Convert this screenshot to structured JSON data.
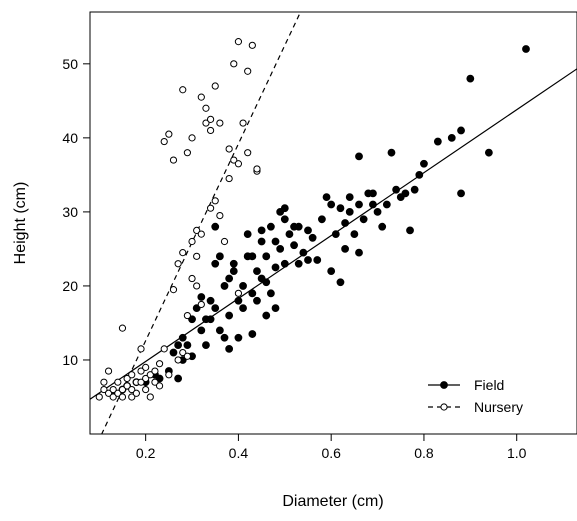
{
  "chart_data": {
    "type": "scatter",
    "title": "",
    "xlabel": "Diameter (cm)",
    "ylabel": "Height (cm)",
    "xlim": [
      0.08,
      1.13
    ],
    "ylim": [
      0,
      57
    ],
    "xticks": [
      0.2,
      0.4,
      0.6,
      0.8,
      1.0
    ],
    "xtick_labels": [
      "0.2",
      "0.4",
      "0.6",
      "0.8",
      "1.0"
    ],
    "yticks": [
      10,
      20,
      30,
      40,
      50
    ],
    "ytick_labels": [
      "10",
      "20",
      "30",
      "40",
      "50"
    ],
    "grid": false,
    "legend_position": "bottom-right",
    "series": [
      {
        "name": "Field",
        "marker": "filled-circle",
        "line": "solid",
        "color": "#000000",
        "fit": {
          "slope": 42.5,
          "intercept": 1.3
        },
        "points": [
          [
            0.13,
            5.5
          ],
          [
            0.15,
            6
          ],
          [
            0.16,
            6.5
          ],
          [
            0.18,
            7
          ],
          [
            0.2,
            7
          ],
          [
            0.22,
            8
          ],
          [
            0.23,
            7.5
          ],
          [
            0.25,
            8.5
          ],
          [
            0.26,
            11
          ],
          [
            0.27,
            12
          ],
          [
            0.27,
            7.5
          ],
          [
            0.28,
            13
          ],
          [
            0.28,
            10
          ],
          [
            0.29,
            12
          ],
          [
            0.3,
            15.5
          ],
          [
            0.3,
            10.5
          ],
          [
            0.31,
            17
          ],
          [
            0.32,
            18.5
          ],
          [
            0.32,
            14
          ],
          [
            0.33,
            15.5
          ],
          [
            0.33,
            12
          ],
          [
            0.34,
            18
          ],
          [
            0.34,
            15.5
          ],
          [
            0.35,
            17
          ],
          [
            0.35,
            23
          ],
          [
            0.35,
            28
          ],
          [
            0.36,
            24
          ],
          [
            0.36,
            14
          ],
          [
            0.37,
            20
          ],
          [
            0.37,
            13
          ],
          [
            0.38,
            16
          ],
          [
            0.38,
            21
          ],
          [
            0.38,
            11.5
          ],
          [
            0.39,
            22
          ],
          [
            0.39,
            23
          ],
          [
            0.4,
            18
          ],
          [
            0.4,
            13
          ],
          [
            0.41,
            17
          ],
          [
            0.41,
            20
          ],
          [
            0.42,
            24
          ],
          [
            0.42,
            27
          ],
          [
            0.43,
            19
          ],
          [
            0.43,
            24
          ],
          [
            0.43,
            13.5
          ],
          [
            0.44,
            22
          ],
          [
            0.44,
            18
          ],
          [
            0.45,
            26
          ],
          [
            0.45,
            21
          ],
          [
            0.45,
            27.5
          ],
          [
            0.46,
            16
          ],
          [
            0.46,
            20.5
          ],
          [
            0.46,
            24
          ],
          [
            0.47,
            28
          ],
          [
            0.47,
            19
          ],
          [
            0.48,
            26
          ],
          [
            0.48,
            22.5
          ],
          [
            0.48,
            17
          ],
          [
            0.49,
            30
          ],
          [
            0.49,
            25
          ],
          [
            0.5,
            29
          ],
          [
            0.5,
            23
          ],
          [
            0.5,
            30.5
          ],
          [
            0.51,
            27
          ],
          [
            0.52,
            25.5
          ],
          [
            0.52,
            28
          ],
          [
            0.53,
            28
          ],
          [
            0.53,
            23
          ],
          [
            0.54,
            24.5
          ],
          [
            0.55,
            23.5
          ],
          [
            0.55,
            27.5
          ],
          [
            0.56,
            26.5
          ],
          [
            0.57,
            23.5
          ],
          [
            0.58,
            29
          ],
          [
            0.59,
            32
          ],
          [
            0.6,
            31
          ],
          [
            0.6,
            22
          ],
          [
            0.61,
            27
          ],
          [
            0.62,
            30.5
          ],
          [
            0.62,
            20.5
          ],
          [
            0.63,
            28.5
          ],
          [
            0.63,
            25
          ],
          [
            0.64,
            32
          ],
          [
            0.64,
            30
          ],
          [
            0.65,
            27
          ],
          [
            0.66,
            31
          ],
          [
            0.66,
            24.5
          ],
          [
            0.66,
            37.5
          ],
          [
            0.67,
            29
          ],
          [
            0.68,
            32.5
          ],
          [
            0.69,
            31
          ],
          [
            0.69,
            32.5
          ],
          [
            0.7,
            30
          ],
          [
            0.71,
            28
          ],
          [
            0.72,
            31
          ],
          [
            0.73,
            38
          ],
          [
            0.74,
            33
          ],
          [
            0.75,
            32
          ],
          [
            0.76,
            32.5
          ],
          [
            0.77,
            27.5
          ],
          [
            0.78,
            33
          ],
          [
            0.79,
            35
          ],
          [
            0.8,
            36.5
          ],
          [
            0.83,
            39.5
          ],
          [
            0.86,
            40
          ],
          [
            0.88,
            32.5
          ],
          [
            0.88,
            41
          ],
          [
            0.9,
            48
          ],
          [
            0.94,
            38
          ],
          [
            1.02,
            52
          ]
        ]
      },
      {
        "name": "Nursery",
        "marker": "open-circle",
        "line": "dashed",
        "color": "#000000",
        "fit": {
          "slope": 133.0,
          "intercept": -14.0
        },
        "points": [
          [
            0.1,
            5
          ],
          [
            0.11,
            6
          ],
          [
            0.11,
            7
          ],
          [
            0.12,
            5.5
          ],
          [
            0.12,
            8.5
          ],
          [
            0.13,
            6
          ],
          [
            0.13,
            5
          ],
          [
            0.14,
            7
          ],
          [
            0.14,
            5.5
          ],
          [
            0.15,
            14.3
          ],
          [
            0.15,
            6
          ],
          [
            0.15,
            5
          ],
          [
            0.16,
            6.5
          ],
          [
            0.16,
            7.5
          ],
          [
            0.17,
            5
          ],
          [
            0.17,
            6
          ],
          [
            0.17,
            8
          ],
          [
            0.18,
            5.5
          ],
          [
            0.18,
            7
          ],
          [
            0.19,
            7
          ],
          [
            0.19,
            8.5
          ],
          [
            0.19,
            11.5
          ],
          [
            0.2,
            6
          ],
          [
            0.2,
            7.5
          ],
          [
            0.2,
            9
          ],
          [
            0.21,
            8
          ],
          [
            0.21,
            5
          ],
          [
            0.22,
            8.5
          ],
          [
            0.22,
            7
          ],
          [
            0.23,
            9.5
          ],
          [
            0.23,
            6.5
          ],
          [
            0.24,
            11.5
          ],
          [
            0.24,
            39.5
          ],
          [
            0.25,
            40.5
          ],
          [
            0.25,
            8
          ],
          [
            0.26,
            37
          ],
          [
            0.26,
            19.5
          ],
          [
            0.27,
            23
          ],
          [
            0.27,
            10
          ],
          [
            0.28,
            46.5
          ],
          [
            0.28,
            24.5
          ],
          [
            0.28,
            11
          ],
          [
            0.29,
            38
          ],
          [
            0.29,
            16
          ],
          [
            0.29,
            10.5
          ],
          [
            0.3,
            40
          ],
          [
            0.3,
            26
          ],
          [
            0.3,
            21
          ],
          [
            0.31,
            27.5
          ],
          [
            0.31,
            24
          ],
          [
            0.31,
            20
          ],
          [
            0.32,
            45.5
          ],
          [
            0.32,
            27
          ],
          [
            0.32,
            17.5
          ],
          [
            0.33,
            44
          ],
          [
            0.33,
            42
          ],
          [
            0.34,
            42.5
          ],
          [
            0.34,
            41
          ],
          [
            0.34,
            30.5
          ],
          [
            0.35,
            47
          ],
          [
            0.35,
            31.5
          ],
          [
            0.36,
            42
          ],
          [
            0.36,
            29.5
          ],
          [
            0.37,
            26
          ],
          [
            0.38,
            38.5
          ],
          [
            0.38,
            34.5
          ],
          [
            0.39,
            50
          ],
          [
            0.39,
            37
          ],
          [
            0.4,
            53
          ],
          [
            0.4,
            36.5
          ],
          [
            0.4,
            19
          ],
          [
            0.41,
            42
          ],
          [
            0.42,
            49
          ],
          [
            0.42,
            38
          ],
          [
            0.43,
            52.5
          ],
          [
            0.44,
            35.5
          ],
          [
            0.44,
            35.8
          ]
        ]
      }
    ]
  }
}
